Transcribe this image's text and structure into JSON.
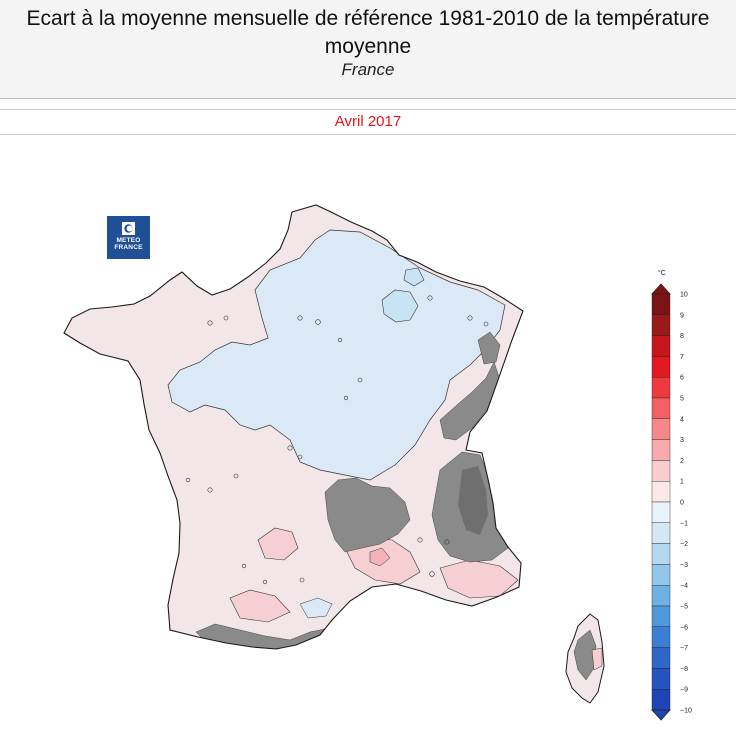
{
  "header": {
    "title": "Ecart à la moyenne mensuelle de référence 1981-2010 de la température moyenne",
    "subtitle": "France"
  },
  "period": "Avril 2017",
  "logo": {
    "line1": "METEO",
    "line2": "FRANCE"
  },
  "colorbar": {
    "unit": "°C",
    "levels": [
      10,
      9,
      8,
      7,
      6,
      5,
      4,
      3,
      2,
      1,
      0,
      -1,
      -2,
      -3,
      -4,
      -5,
      -6,
      -7,
      -8,
      -9,
      -10
    ],
    "colors": [
      "#7a1416",
      "#9a1a1c",
      "#c4161c",
      "#e21a1f",
      "#ee3a3e",
      "#f26065",
      "#f5878a",
      "#f7abad",
      "#f9cdcf",
      "#fbe8e9",
      "#eaf2f9",
      "#d4e7f5",
      "#b5d8f1",
      "#93c6ec",
      "#6fb1e5",
      "#4f98dc",
      "#3a7fd2",
      "#2e67c9",
      "#2553bf",
      "#1f44b5"
    ]
  },
  "map_palette": {
    "neutral_warm": "#f3e6e8",
    "cool": "#dae9f5",
    "cooler": "#c8e3f3",
    "warm": "#f6cfd3",
    "warmer": "#f2b2b8",
    "mountain_mask": "#8a8a8a",
    "mountain_mask_dark": "#6f6f6f",
    "outline": "#1a1a1a"
  }
}
